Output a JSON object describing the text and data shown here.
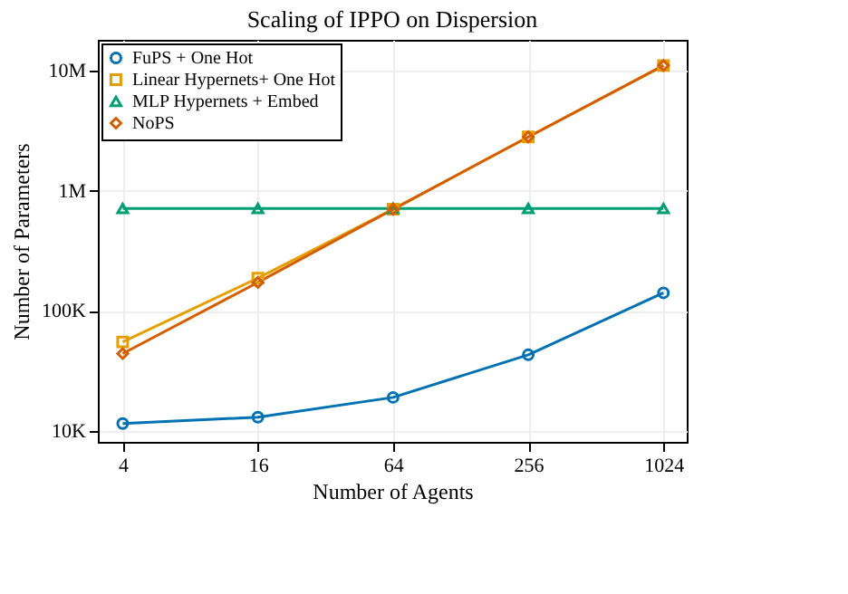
{
  "chart_data": {
    "type": "line",
    "title": "Scaling of IPPO on Dispersion",
    "xlabel": "Number of Agents",
    "ylabel": "Number of Parameters",
    "x": [
      4,
      16,
      64,
      256,
      1024
    ],
    "series": [
      {
        "name": "FuPS + One Hot",
        "color": "#0072b2",
        "marker": "circle",
        "values": [
          11500,
          13000,
          19000,
          43000,
          141000
        ]
      },
      {
        "name": "Linear Hypernets+ One Hot",
        "color": "#e69f00",
        "marker": "square",
        "values": [
          55000,
          187000,
          700000,
          2800000,
          11000000
        ]
      },
      {
        "name": "MLP Hypernets + Embed",
        "color": "#009e73",
        "marker": "triangle",
        "values": [
          710000,
          710000,
          710000,
          710000,
          710000
        ]
      },
      {
        "name": "NoPS",
        "color": "#d55e00",
        "marker": "diamond",
        "values": [
          44000,
          172000,
          700000,
          2800000,
          11000000
        ]
      }
    ],
    "log": "xy",
    "xlim": [
      3.1,
      1300
    ],
    "ylim": [
      8100,
      18000000
    ],
    "xticks": [
      4,
      16,
      64,
      256,
      1024
    ],
    "yticks": [
      {
        "value": 10000,
        "label": "10K"
      },
      {
        "value": 100000,
        "label": "100K"
      },
      {
        "value": 1000000,
        "label": "1M"
      },
      {
        "value": 10000000,
        "label": "10M"
      }
    ],
    "grid": true,
    "legend": "top left",
    "line_style": "solid"
  }
}
